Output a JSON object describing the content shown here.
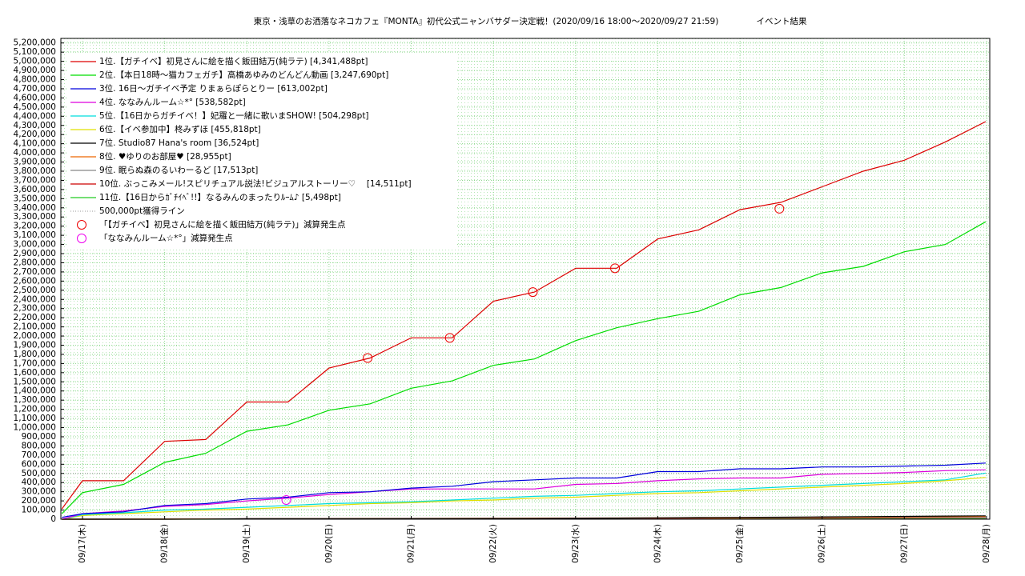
{
  "chart_data": {
    "type": "line",
    "title": "東京・浅草のお洒落なネコカフェ『MONTA』初代公式ニャンバサダー決定戦！(2020/09/16 18:00〜2020/09/27 21:59)",
    "subtitle": "イベント結果",
    "x": [
      -0.25,
      0,
      0.5,
      1,
      1.5,
      2,
      2.5,
      3,
      3.5,
      4,
      4.5,
      5,
      5.5,
      6,
      6.5,
      7,
      7.5,
      8,
      8.5,
      9,
      9.5,
      10,
      10.5,
      10.99
    ],
    "xlim": [
      -0.263,
      11.04
    ],
    "xticks": [
      {
        "value": 0,
        "label": "09/17(木)"
      },
      {
        "value": 1,
        "label": "09/18(金)"
      },
      {
        "value": 2,
        "label": "09/19(土)"
      },
      {
        "value": 3,
        "label": "09/20(日)"
      },
      {
        "value": 4,
        "label": "09/21(月)"
      },
      {
        "value": 5,
        "label": "09/22(火)"
      },
      {
        "value": 6,
        "label": "09/23(水)"
      },
      {
        "value": 7,
        "label": "09/24(木)"
      },
      {
        "value": 8,
        "label": "09/25(金)"
      },
      {
        "value": 9,
        "label": "09/26(土)"
      },
      {
        "value": 10,
        "label": "09/27(日)"
      },
      {
        "value": 11,
        "label": "09/28(月)"
      }
    ],
    "ylim": [
      0,
      5250000
    ],
    "yticks": [
      0,
      {
        "value": 100000,
        "label": "100,000"
      },
      {
        "value": 200000,
        "label": "200,000"
      },
      {
        "value": 300000,
        "label": "300,000"
      },
      {
        "value": 400000,
        "label": "400,000"
      },
      {
        "value": 500000,
        "label": "500,000"
      },
      {
        "value": 600000,
        "label": "600,000"
      },
      {
        "value": 700000,
        "label": "700,000"
      },
      {
        "value": 800000,
        "label": "800,000"
      },
      {
        "value": 900000,
        "label": "900,000"
      },
      {
        "value": 1000000,
        "label": "1,000,000"
      },
      {
        "value": 1100000,
        "label": "1,100,000"
      },
      {
        "value": 1200000,
        "label": "1,200,000"
      },
      {
        "value": 1300000,
        "label": "1,300,000"
      },
      {
        "value": 1400000,
        "label": "1,400,000"
      },
      {
        "value": 1500000,
        "label": "1,500,000"
      },
      {
        "value": 1600000,
        "label": "1,600,000"
      },
      {
        "value": 1700000,
        "label": "1,700,000"
      },
      {
        "value": 1800000,
        "label": "1,800,000"
      },
      {
        "value": 1900000,
        "label": "1,900,000"
      },
      {
        "value": 2000000,
        "label": "2,000,000"
      },
      {
        "value": 2100000,
        "label": "2,100,000"
      },
      {
        "value": 2200000,
        "label": "2,200,000"
      },
      {
        "value": 2300000,
        "label": "2,300,000"
      },
      {
        "value": 2400000,
        "label": "2,400,000"
      },
      {
        "value": 2500000,
        "label": "2,500,000"
      },
      {
        "value": 2600000,
        "label": "2,600,000"
      },
      {
        "value": 2700000,
        "label": "2,700,000"
      },
      {
        "value": 2800000,
        "label": "2,800,000"
      },
      {
        "value": 2900000,
        "label": "2,900,000"
      },
      {
        "value": 3000000,
        "label": "3,000,000"
      },
      {
        "value": 3100000,
        "label": "3,100,000"
      },
      {
        "value": 3200000,
        "label": "3,200,000"
      },
      {
        "value": 3300000,
        "label": "3,300,000"
      },
      {
        "value": 3400000,
        "label": "3,400,000"
      },
      {
        "value": 3500000,
        "label": "3,500,000"
      },
      {
        "value": 3600000,
        "label": "3,600,000"
      },
      {
        "value": 3700000,
        "label": "3,700,000"
      },
      {
        "value": 3800000,
        "label": "3,800,000"
      },
      {
        "value": 3900000,
        "label": "3,900,000"
      },
      {
        "value": 4000000,
        "label": "4,000,000"
      },
      {
        "value": 4100000,
        "label": "4,100,000"
      },
      {
        "value": 4200000,
        "label": "4,200,000"
      },
      {
        "value": 4300000,
        "label": "4,300,000"
      },
      {
        "value": 4400000,
        "label": "4,400,000"
      },
      {
        "value": 4500000,
        "label": "4,500,000"
      },
      {
        "value": 4600000,
        "label": "4,600,000"
      },
      {
        "value": 4700000,
        "label": "4,700,000"
      },
      {
        "value": 4800000,
        "label": "4,800,000"
      },
      {
        "value": 4900000,
        "label": "4,900,000"
      },
      {
        "value": 5000000,
        "label": "5,000,000"
      },
      {
        "value": 5100000,
        "label": "5,100,000"
      },
      {
        "value": 5200000,
        "label": "5,200,000"
      }
    ],
    "grid": true,
    "legend": "top-left",
    "series": [
      {
        "name": "1位.【ガチイベ】初見さんに絵を描く飯田結万(純ラテ) [4,341,488pt]",
        "color": "#dd0000",
        "values": [
          113000,
          420000,
          420000,
          850000,
          870000,
          1280000,
          1280000,
          1650000,
          1760000,
          1980000,
          1980000,
          2380000,
          2480000,
          2740000,
          2740000,
          3060000,
          3160000,
          3380000,
          3460000,
          3630000,
          3800000,
          3920000,
          4120000,
          4341488
        ]
      },
      {
        "name": "2位.【本日18時〜猫カフェガチ】高橋あゆみのどんどん動画 [3,247,690pt]",
        "color": "#00dd00",
        "values": [
          60000,
          290000,
          380000,
          620000,
          720000,
          960000,
          1030000,
          1190000,
          1260000,
          1430000,
          1510000,
          1680000,
          1750000,
          1950000,
          2090000,
          2190000,
          2270000,
          2450000,
          2530000,
          2690000,
          2760000,
          2920000,
          3000000,
          3247690
        ]
      },
      {
        "name": "3位. 16日〜ガチイベ予定 りまぁらぽらとりー [613,002pt]",
        "color": "#0000dd",
        "values": [
          20000,
          60000,
          80000,
          150000,
          170000,
          220000,
          240000,
          290000,
          300000,
          340000,
          360000,
          410000,
          430000,
          450000,
          450000,
          520000,
          520000,
          550000,
          550000,
          570000,
          570000,
          580000,
          590000,
          613002
        ]
      },
      {
        "name": "4位. ななみんルーム☆*° [538,582pt]",
        "color": "#dd00dd",
        "values": [
          0,
          60000,
          90000,
          140000,
          160000,
          200000,
          230000,
          270000,
          300000,
          330000,
          330000,
          330000,
          330000,
          380000,
          390000,
          420000,
          440000,
          450000,
          450000,
          490000,
          500000,
          510000,
          530000,
          538582
        ]
      },
      {
        "name": "5位.【16日からガチイベ！】妃羅と一緒に歌いまSHOW! [504,298pt]",
        "color": "#00dddd",
        "values": [
          0,
          50000,
          70000,
          100000,
          110000,
          130000,
          150000,
          170000,
          180000,
          190000,
          210000,
          230000,
          250000,
          260000,
          280000,
          300000,
          310000,
          330000,
          350000,
          370000,
          390000,
          410000,
          430000,
          504298
        ]
      },
      {
        "name": "6位.【イベ参加中】柊みずほ [455,818pt]",
        "color": "#e0e000",
        "values": [
          0,
          40000,
          60000,
          80000,
          100000,
          110000,
          130000,
          150000,
          170000,
          180000,
          200000,
          210000,
          230000,
          240000,
          260000,
          280000,
          290000,
          310000,
          330000,
          350000,
          370000,
          390000,
          420000,
          455818
        ]
      },
      {
        "name": "7位. Studio87 Hana's room [36,524pt]",
        "color": "#000000",
        "values": [
          0,
          0,
          0,
          0,
          2000,
          5000,
          5000,
          6000,
          6000,
          7000,
          7000,
          8000,
          8000,
          10000,
          12000,
          15000,
          18000,
          20000,
          22000,
          25000,
          28000,
          31000,
          34000,
          36524
        ]
      },
      {
        "name": "8位. ♥ゆりのお部屋♥ [28,955pt]",
        "color": "#ee6600",
        "values": [
          0,
          0,
          1000,
          2000,
          3000,
          4000,
          5000,
          6000,
          7000,
          8000,
          9000,
          10000,
          11000,
          12000,
          13000,
          14000,
          15000,
          17000,
          19000,
          21000,
          23000,
          25000,
          27000,
          28955
        ]
      },
      {
        "name": "9位. 眠らぬ森のるいわーるど [17,513pt]",
        "color": "#888888",
        "values": [
          0,
          0,
          0,
          1000,
          1000,
          2000,
          3000,
          4000,
          5000,
          6000,
          6000,
          7000,
          8000,
          9000,
          10000,
          11000,
          12000,
          13000,
          14000,
          15000,
          16000,
          16000,
          17000,
          17513
        ]
      },
      {
        "name": "10位. ぶっこみメール!スピリチュアル説法!ビジュアルストーリー♡　 [14,511pt]",
        "color": "#cc0000",
        "values": [
          0,
          0,
          0,
          0,
          1000,
          1000,
          2000,
          3000,
          4000,
          5000,
          5000,
          6000,
          7000,
          8000,
          9000,
          10000,
          10000,
          11000,
          12000,
          12000,
          13000,
          13000,
          14000,
          14511
        ]
      },
      {
        "name": "11位.【16日からｶﾞﾁｲﾍﾞ!!】なるみんのまったりﾙｰﾑ♪ [5,498pt]",
        "color": "#22cc22",
        "values": [
          0,
          0,
          0,
          0,
          0,
          500,
          1000,
          1000,
          1500,
          2000,
          2000,
          2500,
          3000,
          3000,
          3500,
          4000,
          4000,
          4500,
          4500,
          5000,
          5000,
          5000,
          5200,
          5498
        ]
      }
    ],
    "reference_line": {
      "name": "500,000pt獲得ライン",
      "value": 500000,
      "color": "#999999"
    },
    "markers": [
      {
        "name": "「【ガチイベ】初見さんに絵を描く飯田結万(純ラテ)」減算発生点",
        "color": "#ee0000",
        "x": [
          3.47,
          4.47,
          5.48,
          6.48,
          8.48
        ],
        "values": [
          1760000,
          1980000,
          2480000,
          2740000,
          3390000
        ]
      },
      {
        "name": "「ななみんルーム☆*°」減算発生点",
        "color": "#ee00ee",
        "x": [
          2.48
        ],
        "values": [
          210000
        ]
      }
    ]
  }
}
